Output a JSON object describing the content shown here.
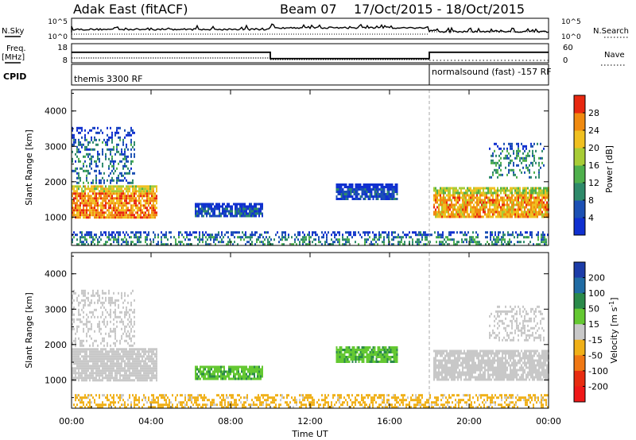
{
  "header": {
    "station": "Adak East (fitACF)",
    "beam": "Beam 07",
    "date_range": "17/Oct/2015 - 18/Oct/2015"
  },
  "side_labels": {
    "nsky": "N.Sky",
    "freq_line1": "Freq.",
    "freq_line2": "[MHz]",
    "cpid": "CPID",
    "nsearch": "N.Search",
    "nave": "Nave"
  },
  "nsky_panel": {
    "left_ticks": [
      "10^5",
      "10^0"
    ],
    "right_ticks": [
      "10^5",
      "10^0"
    ]
  },
  "freq_panel": {
    "left_ticks": [
      "18",
      "8"
    ],
    "right_ticks": [
      "60",
      "0"
    ],
    "segments": [
      {
        "start_hour": 0,
        "end_hour": 10,
        "freq_mhz": 13.5
      },
      {
        "start_hour": 10,
        "end_hour": 18,
        "freq_mhz": 10.2
      },
      {
        "start_hour": 18,
        "end_hour": 24,
        "freq_mhz": 13.5
      }
    ]
  },
  "cpid_panel": {
    "segments": [
      {
        "start_hour": 0,
        "end_hour": 18,
        "label": "themis 3300 RF"
      },
      {
        "start_hour": 18,
        "end_hour": 24,
        "label": "normalsound (fast) -157 RF"
      }
    ]
  },
  "chart_data": [
    {
      "type": "heatmap",
      "quantity": "Power",
      "ylabel": "Slant Range [km]",
      "xlim_hours": [
        0,
        24
      ],
      "ylim": [
        200,
        4600
      ],
      "y_ticks": [
        1000,
        2000,
        3000,
        4000
      ],
      "colorbar": {
        "label": "Power [dB]",
        "ticks": [
          4,
          8,
          12,
          16,
          20,
          24,
          28
        ],
        "range": [
          0,
          32
        ],
        "colors": [
          "#1030d0",
          "#1c50b4",
          "#2e8a6a",
          "#4fb04c",
          "#a8cc36",
          "#f0c020",
          "#f08a10",
          "#e82810"
        ]
      },
      "features": [
        {
          "name": "near-range band",
          "hours": [
            0,
            24
          ],
          "range_km": [
            250,
            600
          ],
          "level_db": 10
        },
        {
          "name": "morning strong echo",
          "hours": [
            0,
            4.3
          ],
          "range_km": [
            1000,
            1900
          ],
          "level_db": 26
        },
        {
          "name": "morning high-range scatter",
          "hours": [
            0,
            3.2
          ],
          "range_km": [
            2000,
            3550
          ],
          "level_db": 8
        },
        {
          "name": "06-09 patch",
          "hours": [
            6.2,
            9.6
          ],
          "range_km": [
            1000,
            1400
          ],
          "level_db": 6
        },
        {
          "name": "13-16 patch",
          "hours": [
            13.3,
            16.4
          ],
          "range_km": [
            1500,
            1950
          ],
          "level_db": 5
        },
        {
          "name": "evening strong echo",
          "hours": [
            18.2,
            24
          ],
          "range_km": [
            1000,
            1850
          ],
          "level_db": 24
        },
        {
          "name": "evening high-range scatter",
          "hours": [
            21,
            23.8
          ],
          "range_km": [
            2100,
            3100
          ],
          "level_db": 10
        }
      ]
    },
    {
      "type": "heatmap",
      "quantity": "Velocity",
      "xlabel": "Time UT",
      "ylabel": "Slant Range [km]",
      "xlim_hours": [
        0,
        24
      ],
      "x_ticks": [
        "00:00",
        "04:00",
        "08:00",
        "12:00",
        "16:00",
        "20:00",
        "00:00"
      ],
      "ylim": [
        200,
        4600
      ],
      "y_ticks": [
        1000,
        2000,
        3000,
        4000
      ],
      "colorbar": {
        "label": "Velocity [m s^-1]",
        "ticks": [
          "200",
          "100",
          "50",
          "15",
          "-15",
          "-50",
          "-100",
          "-200"
        ],
        "colors": [
          "#1c3ca8",
          "#206ca4",
          "#2a8a4a",
          "#64c832",
          "#c8c8c8",
          "#f0b018",
          "#f07814",
          "#e82c10",
          "#f01818"
        ]
      },
      "features": [
        {
          "name": "near-range band",
          "hours": [
            0,
            24
          ],
          "range_km": [
            250,
            600
          ],
          "velocity_ms": -30
        },
        {
          "name": "morning ground scatter",
          "hours": [
            0,
            4.3
          ],
          "range_km": [
            1000,
            1900
          ],
          "velocity_ms": 0
        },
        {
          "name": "morning high-range scatter",
          "hours": [
            0,
            3.2
          ],
          "range_km": [
            2000,
            3550
          ],
          "velocity_ms": 0
        },
        {
          "name": "06-09 patch",
          "hours": [
            6.2,
            9.6
          ],
          "range_km": [
            1000,
            1400
          ],
          "velocity_ms": 40
        },
        {
          "name": "13-16 patch",
          "hours": [
            13.3,
            16.4
          ],
          "range_km": [
            1500,
            1950
          ],
          "velocity_ms": 40
        },
        {
          "name": "evening ground scatter",
          "hours": [
            18.2,
            24
          ],
          "range_km": [
            1000,
            1850
          ],
          "velocity_ms": 0
        },
        {
          "name": "evening high-range scatter",
          "hours": [
            21,
            23.8
          ],
          "range_km": [
            2100,
            3100
          ],
          "velocity_ms": 0
        }
      ]
    }
  ]
}
